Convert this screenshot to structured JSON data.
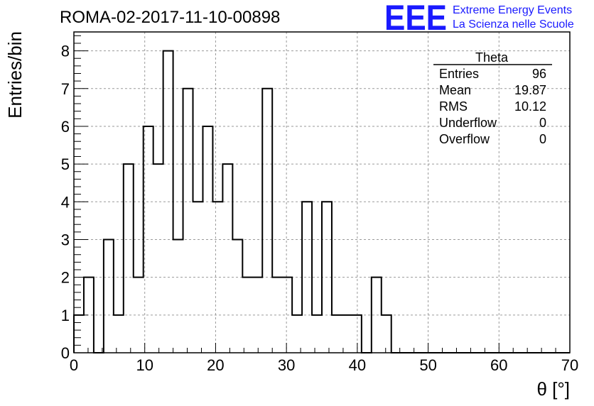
{
  "chart_data": {
    "type": "bar",
    "title": "ROMA-02-2017-11-10-00898",
    "xlabel": "θ [°]",
    "ylabel": "Entries/bin",
    "xlim": [
      0,
      70
    ],
    "ylim": [
      0,
      8.5
    ],
    "x_ticks": [
      "0",
      "10",
      "20",
      "30",
      "40",
      "50",
      "60",
      "70"
    ],
    "y_ticks": [
      "0",
      "1",
      "2",
      "3",
      "4",
      "5",
      "6",
      "7",
      "8"
    ],
    "grid": true,
    "bin_edges": [
      0,
      1.4,
      2.8,
      4.2,
      5.6,
      7.0,
      8.4,
      9.8,
      11.2,
      12.6,
      14.0,
      15.4,
      16.8,
      18.2,
      19.6,
      21.0,
      22.4,
      23.8,
      25.2,
      26.6,
      28.0,
      29.4,
      30.8,
      32.2,
      33.6,
      35.0,
      36.4,
      37.8,
      39.2,
      40.6,
      42.0,
      43.4,
      44.8,
      46.2,
      47.6,
      49.0,
      50.4,
      51.8,
      53.2,
      54.6,
      56.0,
      57.4,
      58.8,
      60.2,
      61.6,
      63.0,
      64.4,
      65.8,
      67.2,
      68.6,
      70.0
    ],
    "values": [
      1,
      2,
      0,
      3,
      1,
      5,
      2,
      6,
      5,
      8,
      3,
      7,
      4,
      6,
      4,
      5,
      3,
      2,
      2,
      7,
      2,
      2,
      1,
      4,
      1,
      4,
      1,
      1,
      1,
      0,
      2,
      1,
      0,
      0,
      0,
      0,
      0,
      0,
      0,
      0,
      0,
      0,
      0,
      0,
      0,
      0,
      0,
      0,
      0,
      0
    ],
    "stats": {
      "title": "Theta",
      "rows": [
        {
          "label": "Entries",
          "value": "96"
        },
        {
          "label": "Mean",
          "value": "19.87"
        },
        {
          "label": "RMS",
          "value": "10.12"
        },
        {
          "label": "Underflow",
          "value": "0"
        },
        {
          "label": "Overflow",
          "value": "0"
        }
      ]
    }
  },
  "logo": {
    "mark": "EEE",
    "line1": "Extreme Energy Events",
    "line2": "La Scienza nelle Scuole",
    "color": "#1a1aff"
  }
}
